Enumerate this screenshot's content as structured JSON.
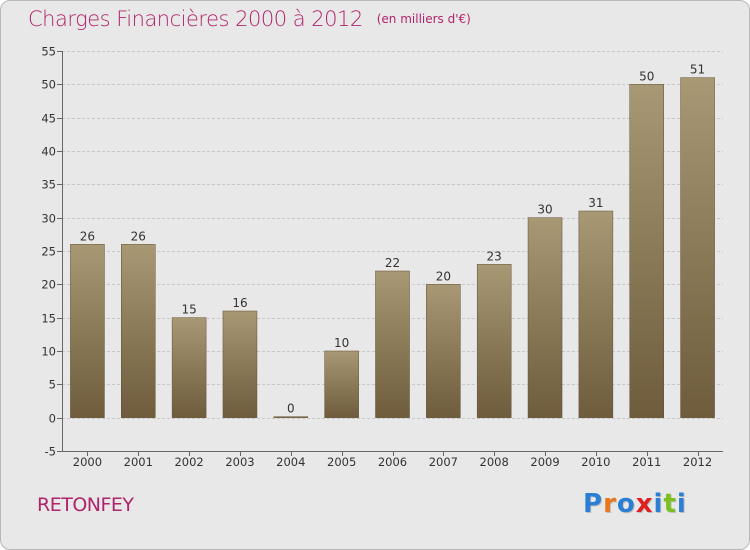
{
  "header": {
    "title": "Charges Financières 2000 à 2012",
    "subtitle": "(en milliers d'€)"
  },
  "commune": "RETONFEY",
  "logo": {
    "text": "Proxiti",
    "letter_colors": [
      "#2a7fd4",
      "#e8761c",
      "#2a7fd4",
      "#e02020",
      "#2a7fd4",
      "#7cc020",
      "#2a7fd4"
    ]
  },
  "colors": {
    "bar_top": "#a89874",
    "bar_bottom": "#6e5c3c",
    "title": "#b0246c",
    "background": "#e8e8e8"
  },
  "chart_data": {
    "type": "bar",
    "title": "Charges Financières 2000 à 2012",
    "subtitle": "(en milliers d'€)",
    "categories": [
      "2000",
      "2001",
      "2002",
      "2003",
      "2004",
      "2005",
      "2006",
      "2007",
      "2008",
      "2009",
      "2010",
      "2011",
      "2012"
    ],
    "values": [
      26,
      26,
      15,
      16,
      0,
      10,
      22,
      20,
      23,
      30,
      31,
      50,
      51
    ],
    "ylim": [
      -5,
      55
    ],
    "yticks": [
      -5,
      0,
      5,
      10,
      15,
      20,
      25,
      30,
      35,
      40,
      45,
      50,
      55
    ],
    "grid": true,
    "data_labels": true
  }
}
